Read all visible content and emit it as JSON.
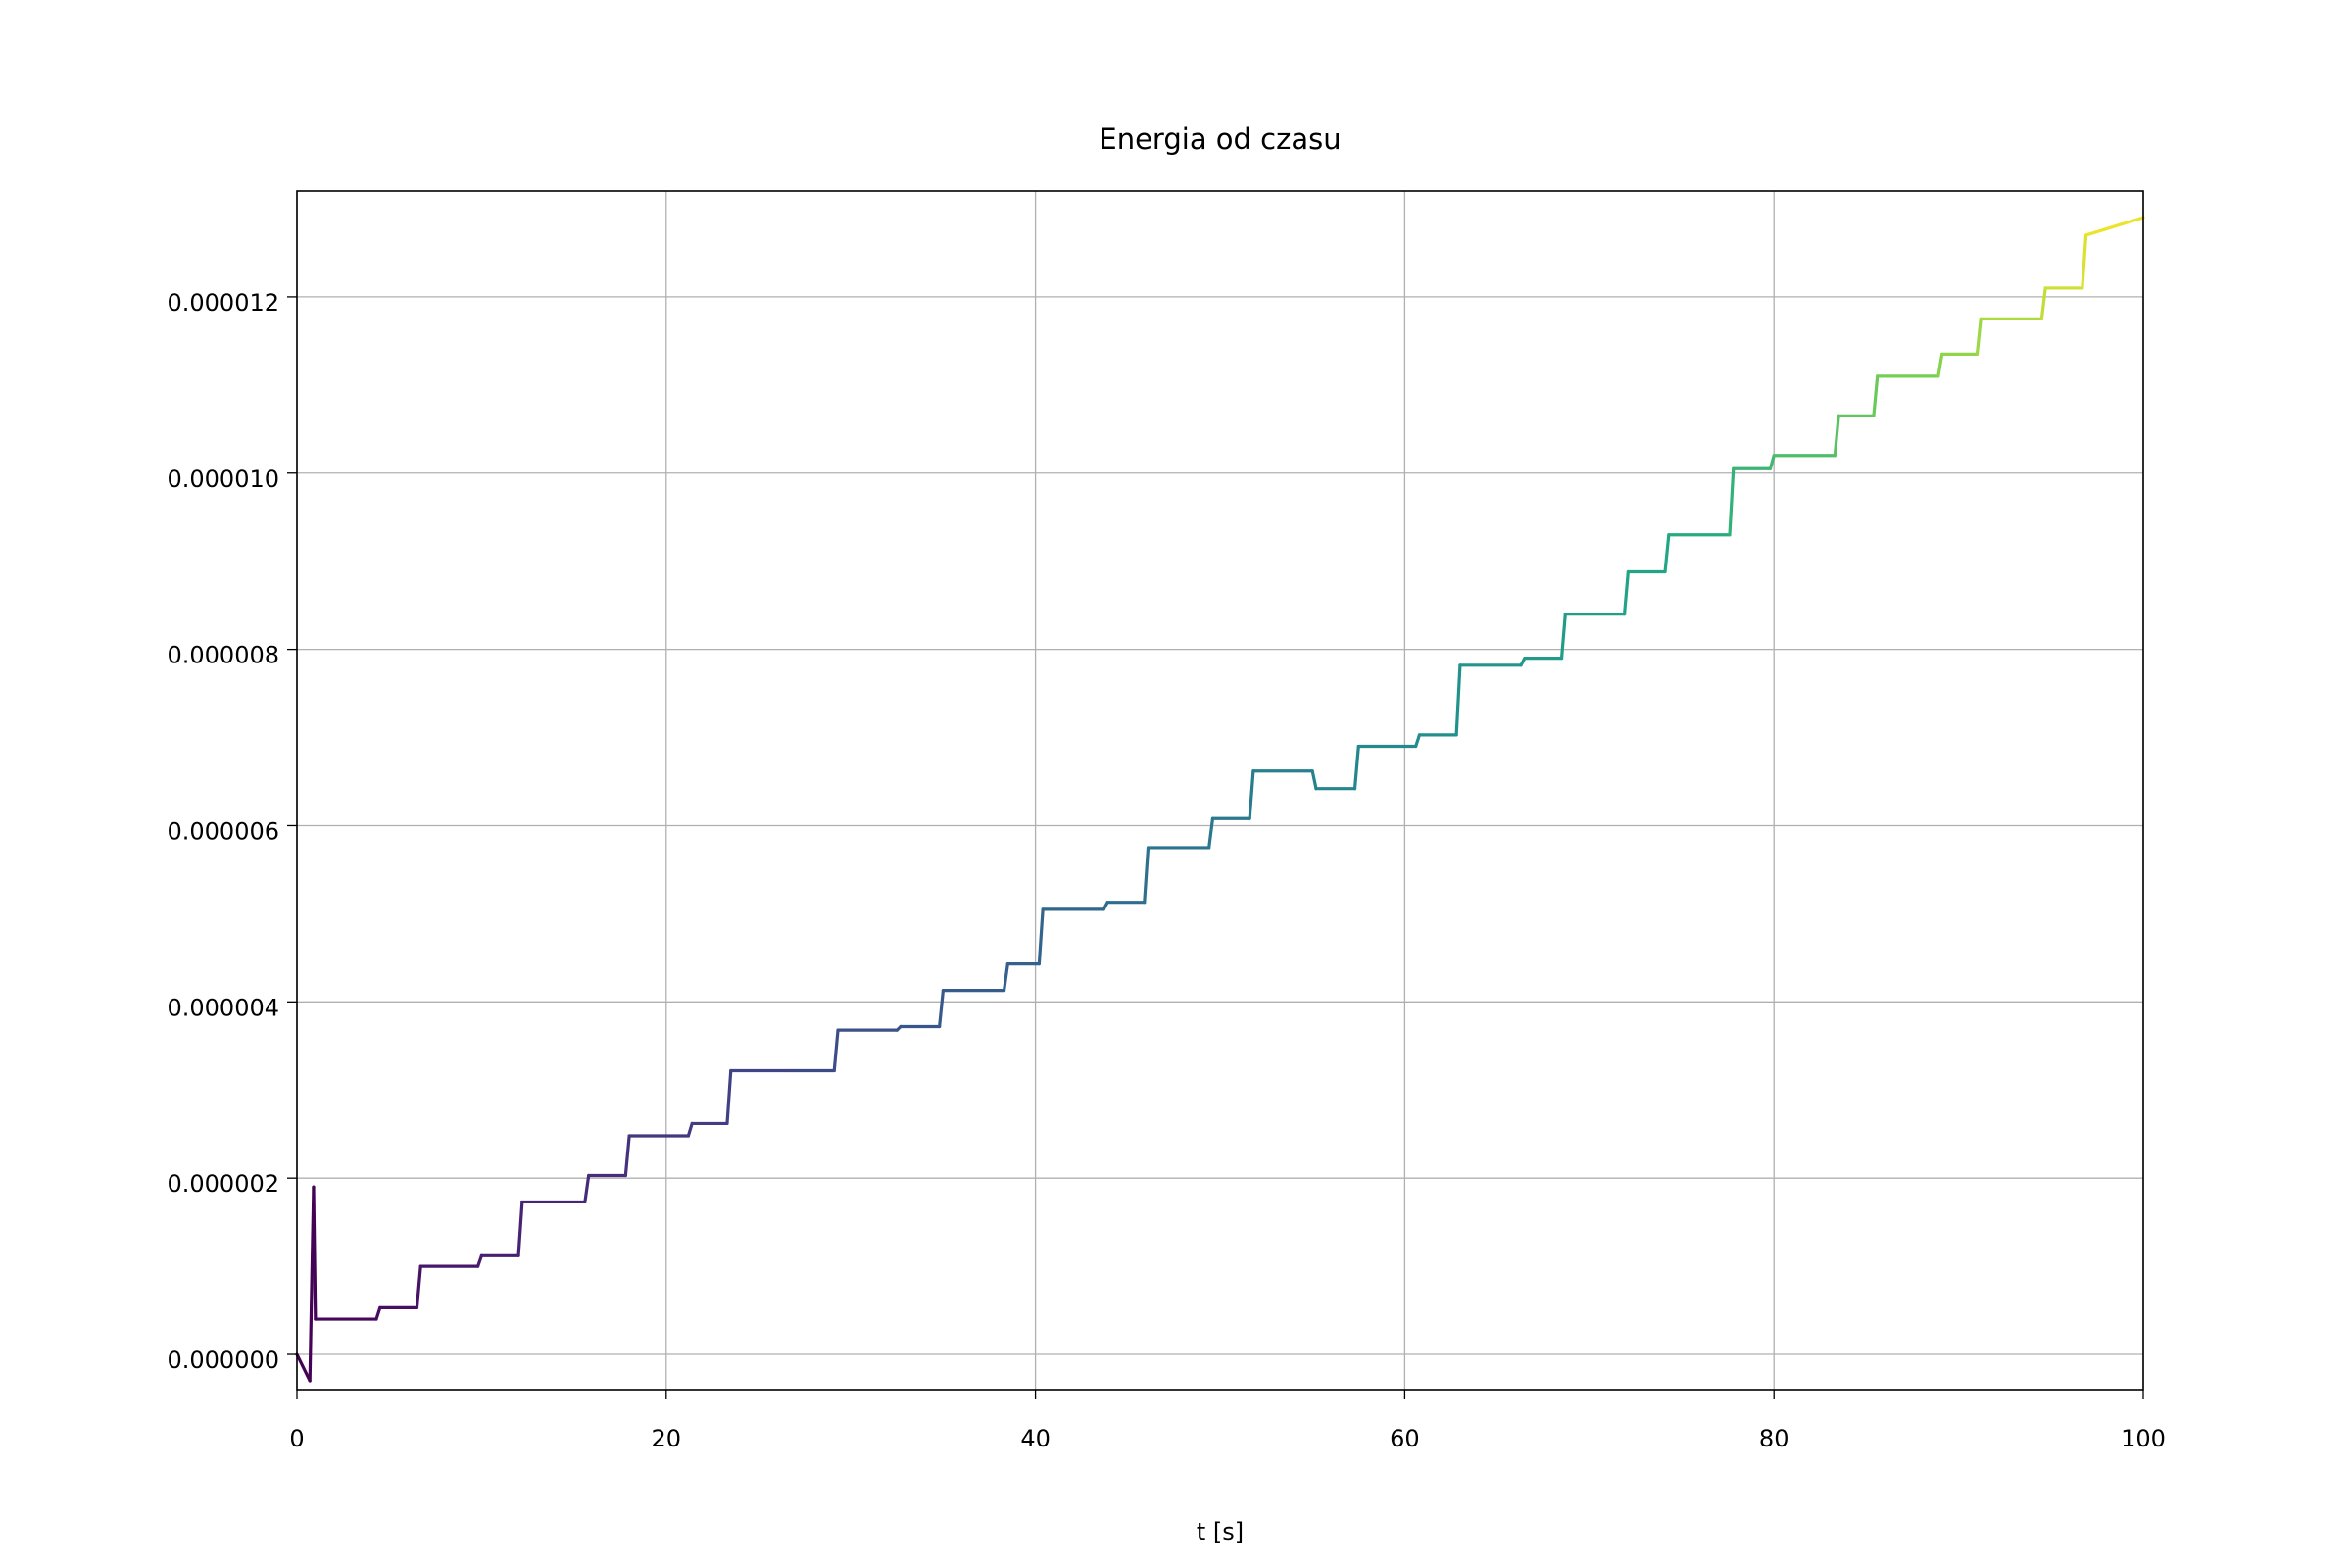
{
  "chart_data": {
    "type": "line",
    "title": "Energia od czasu",
    "xlabel": "t [s]",
    "ylabel": "",
    "xlim": [
      0,
      100
    ],
    "ylim": [
      -4e-07,
      1.32e-05
    ],
    "grid": true,
    "colormap": "viridis",
    "x_ticks": [
      0,
      20,
      40,
      60,
      80,
      100
    ],
    "x_tick_labels": [
      "0",
      "20",
      "40",
      "60",
      "80",
      "100"
    ],
    "y_ticks": [
      0,
      2e-06,
      4e-06,
      6e-06,
      8e-06,
      1e-05,
      1.2e-05
    ],
    "y_tick_labels": [
      "0.000000",
      "0.000002",
      "0.000004",
      "0.000006",
      "0.000008",
      "0.000010",
      "0.000012"
    ],
    "series": [
      {
        "x": [
          0,
          0.7,
          0.9,
          1.0,
          1.1,
          4.3,
          4.5,
          6.5,
          6.7,
          9.8,
          10.0,
          12.0,
          12.2,
          15.6,
          15.8,
          17.8,
          18.0,
          21.2,
          21.4,
          23.3,
          23.5,
          26.8,
          27.0,
          29.1,
          29.3,
          32.5,
          32.7,
          34.8,
          35.0,
          38.3,
          38.5,
          40.2,
          40.4,
          43.7,
          43.9,
          45.9,
          46.1,
          49.4,
          49.6,
          51.6,
          51.8,
          55.0,
          55.2,
          57.3,
          57.5,
          60.6,
          60.8,
          62.8,
          63.0,
          66.3,
          66.5,
          68.5,
          68.7,
          71.9,
          72.1,
          74.1,
          74.3,
          77.6,
          77.8,
          79.8,
          80.0,
          83.3,
          83.5,
          85.4,
          85.6,
          88.9,
          89.1,
          91.0,
          91.2,
          94.5,
          94.7,
          96.7,
          96.9,
          100
        ],
        "y": [
          0.0,
          -3e-07,
          1.9e-06,
          4e-07,
          4e-07,
          4e-07,
          5.3e-07,
          5.3e-07,
          1e-06,
          1e-06,
          1.12e-06,
          1.12e-06,
          1.73e-06,
          1.73e-06,
          2.03e-06,
          2.03e-06,
          2.48e-06,
          2.48e-06,
          2.62e-06,
          2.62e-06,
          3.22e-06,
          3.22e-06,
          3.22e-06,
          3.22e-06,
          3.68e-06,
          3.68e-06,
          3.72e-06,
          3.72e-06,
          4.13e-06,
          4.13e-06,
          4.43e-06,
          4.43e-06,
          5.05e-06,
          5.05e-06,
          5.13e-06,
          5.13e-06,
          5.75e-06,
          5.75e-06,
          6.08e-06,
          6.08e-06,
          6.62e-06,
          6.62e-06,
          6.42e-06,
          6.42e-06,
          6.9e-06,
          6.9e-06,
          7.03e-06,
          7.03e-06,
          7.82e-06,
          7.82e-06,
          7.9e-06,
          7.9e-06,
          8.4e-06,
          8.4e-06,
          8.88e-06,
          8.88e-06,
          9.3e-06,
          9.3e-06,
          1.005e-05,
          1.005e-05,
          1.02e-05,
          1.02e-05,
          1.065e-05,
          1.065e-05,
          1.11e-05,
          1.11e-05,
          1.135e-05,
          1.135e-05,
          1.175e-05,
          1.175e-05,
          1.21e-05,
          1.21e-05,
          1.27e-05,
          1.29e-05
        ]
      }
    ]
  }
}
